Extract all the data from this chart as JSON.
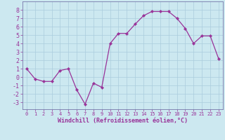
{
  "x": [
    0,
    1,
    2,
    3,
    4,
    5,
    6,
    7,
    8,
    9,
    10,
    11,
    12,
    13,
    14,
    15,
    16,
    17,
    18,
    19,
    20,
    21,
    22,
    23
  ],
  "y": [
    1,
    -0.2,
    -0.5,
    -0.5,
    0.8,
    1.0,
    -1.5,
    -3.2,
    -0.7,
    -1.2,
    4.0,
    5.2,
    5.2,
    6.3,
    7.3,
    7.8,
    7.8,
    7.8,
    7.0,
    5.8,
    4.0,
    4.9,
    4.9,
    2.2
  ],
  "line_color": "#993399",
  "marker": "D",
  "marker_size": 2.2,
  "background_color": "#cce8f0",
  "grid_color": "#aaccdd",
  "xlabel": "Windchill (Refroidissement éolien,°C)",
  "xlim": [
    -0.5,
    23.5
  ],
  "ylim": [
    -3.8,
    9.0
  ],
  "xticks": [
    0,
    1,
    2,
    3,
    4,
    5,
    6,
    7,
    8,
    9,
    10,
    11,
    12,
    13,
    14,
    15,
    16,
    17,
    18,
    19,
    20,
    21,
    22,
    23
  ],
  "yticks": [
    -3,
    -2,
    -1,
    0,
    1,
    2,
    3,
    4,
    5,
    6,
    7,
    8
  ],
  "spine_color": "#7777aa",
  "tick_color": "#993399",
  "label_color": "#993399",
  "xlabel_fontsize": 6.0,
  "tick_fontsize_x": 5.0,
  "tick_fontsize_y": 6.0
}
